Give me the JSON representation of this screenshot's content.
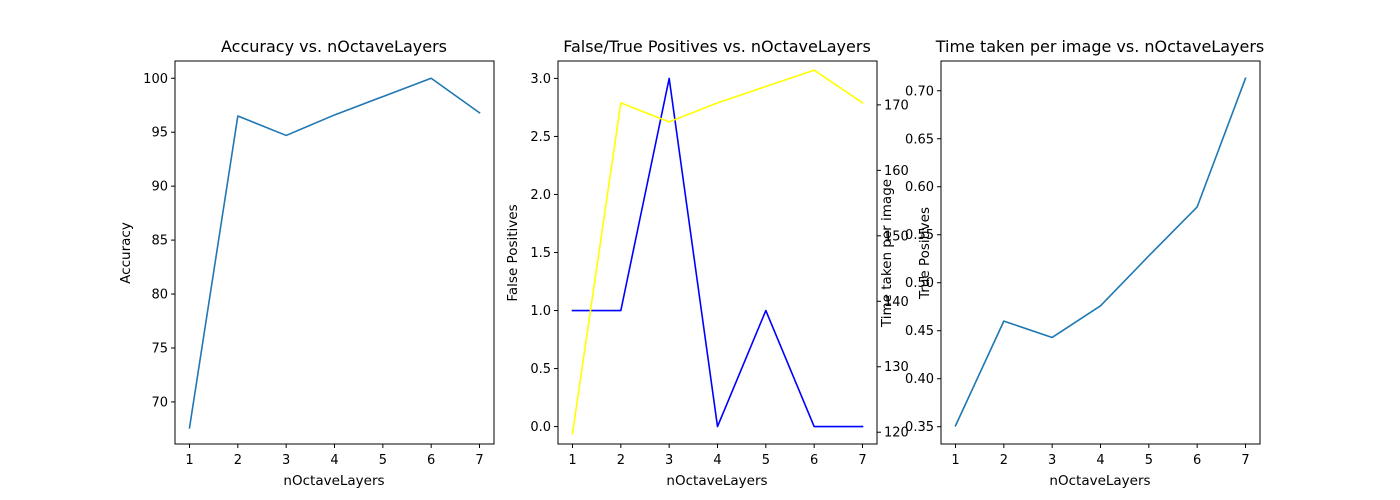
{
  "chart_data": [
    {
      "type": "line",
      "title": "Accuracy vs. nOctaveLayers",
      "xlabel": "nOctaveLayers",
      "ylabel": "Accuracy",
      "x": [
        1,
        2,
        3,
        4,
        5,
        6,
        7
      ],
      "xticks": [
        "1",
        "2",
        "3",
        "4",
        "5",
        "6",
        "7"
      ],
      "xlim": [
        0.7,
        7.3
      ],
      "ylim": [
        66.1,
        101.6
      ],
      "yticks": [
        "70",
        "75",
        "80",
        "85",
        "90",
        "95",
        "100"
      ],
      "grid": false,
      "series": [
        {
          "values": [
            67.6,
            96.5,
            94.7,
            96.6,
            98.3,
            100.0,
            96.8
          ],
          "color": "#1f77b4"
        }
      ]
    },
    {
      "type": "line",
      "title": "False/True Positives vs. nOctaveLayers",
      "xlabel": "nOctaveLayers",
      "ylabel": "False Positives",
      "ylabel_right_1": "Time taken per image",
      "ylabel_right_2": "True Positives",
      "x": [
        1,
        2,
        3,
        4,
        5,
        6,
        7
      ],
      "xticks": [
        "1",
        "2",
        "3",
        "4",
        "5",
        "6",
        "7"
      ],
      "xlim": [
        0.7,
        7.3
      ],
      "ylim": [
        -0.15,
        3.15
      ],
      "yticks": [
        "0.0",
        "0.5",
        "1.0",
        "1.5",
        "2.0",
        "2.5",
        "3.0"
      ],
      "ylim_right": [
        118.2,
        176.7
      ],
      "yticks_right": [
        "120",
        "130",
        "140",
        "150",
        "160",
        "170"
      ],
      "grid": false,
      "series": [
        {
          "axis": "left",
          "values": [
            1,
            1,
            3,
            0,
            1,
            0,
            0
          ],
          "color": "#0000ff"
        },
        {
          "axis": "right",
          "values": [
            119.8,
            170.3,
            167.4,
            170.3,
            172.8,
            175.3,
            170.3
          ],
          "color": "#ffff00"
        }
      ]
    },
    {
      "type": "line",
      "title": "Time taken per image vs. nOctaveLayers",
      "xlabel": "nOctaveLayers",
      "ylabel": "",
      "x": [
        1,
        2,
        3,
        4,
        5,
        6,
        7
      ],
      "xticks": [
        "1",
        "2",
        "3",
        "4",
        "5",
        "6",
        "7"
      ],
      "xlim": [
        0.7,
        7.3
      ],
      "ylim": [
        0.332,
        0.731
      ],
      "yticks": [
        "0.35",
        "0.40",
        "0.45",
        "0.50",
        "0.55",
        "0.60",
        "0.65",
        "0.70"
      ],
      "grid": false,
      "series": [
        {
          "values": [
            0.351,
            0.46,
            0.443,
            0.476,
            0.528,
            0.579,
            0.713
          ],
          "color": "#1f77b4"
        }
      ]
    }
  ]
}
